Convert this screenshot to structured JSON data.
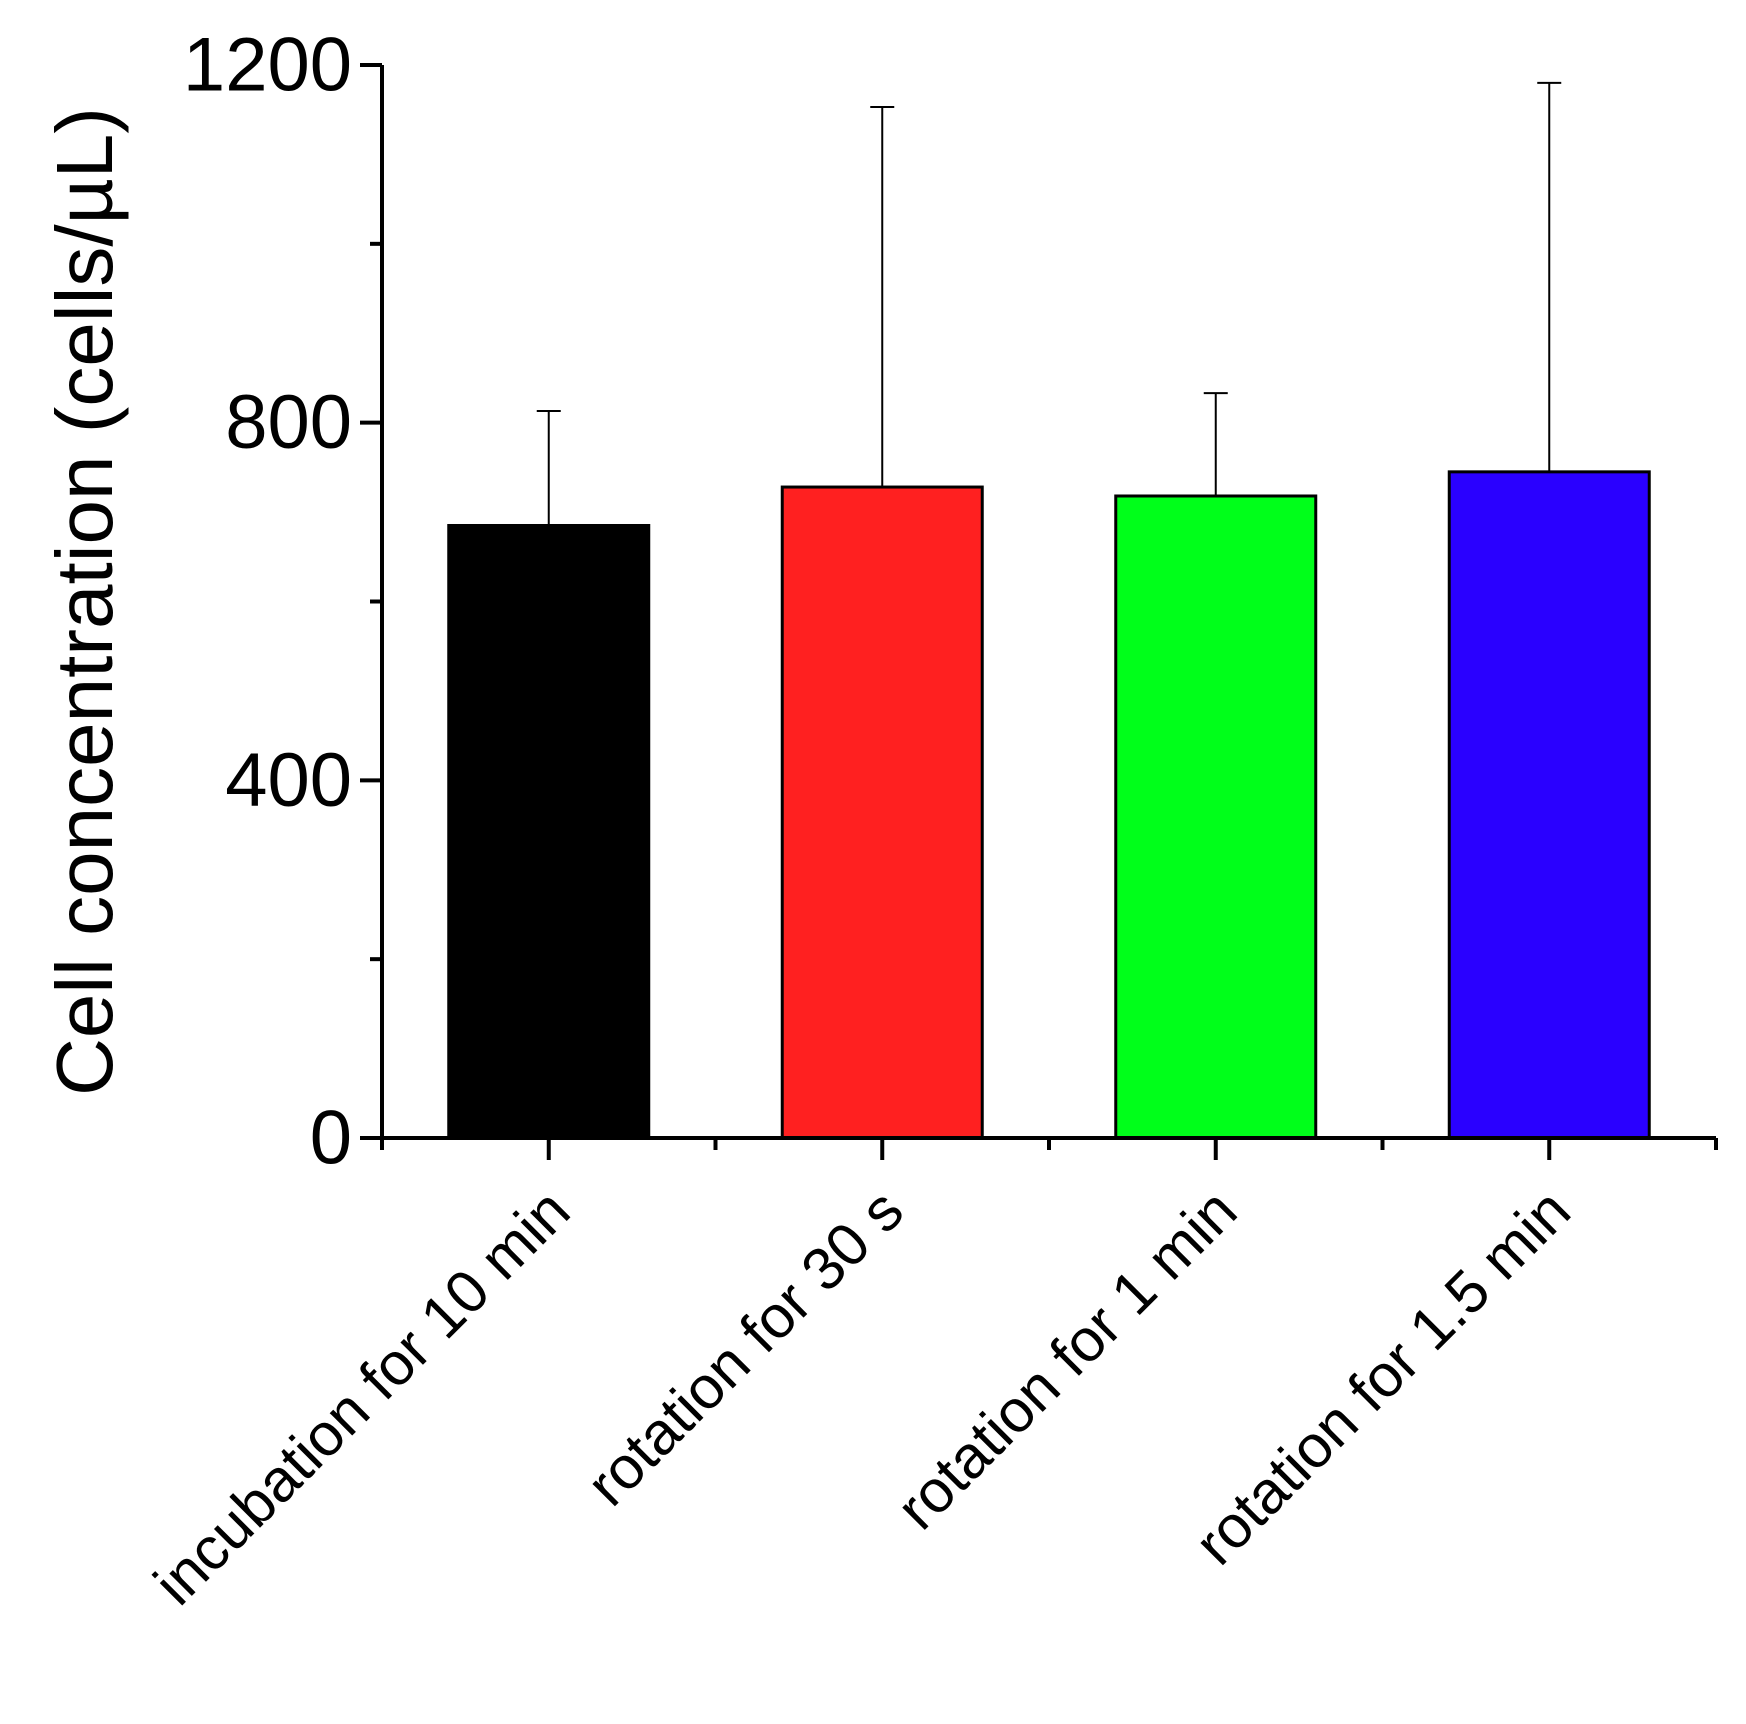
{
  "chart_data": {
    "type": "bar",
    "title": "",
    "xlabel": "",
    "ylabel": "Cell concentration (cells/µL)",
    "categories": [
      "incubation for 10 min",
      "rotation for 30 s",
      "rotation for 1 min",
      "rotation for 1.5 min"
    ],
    "values": [
      685,
      728,
      718,
      745
    ],
    "error_plus": [
      128,
      425,
      115,
      435
    ],
    "colors": [
      "#000000",
      "#ff2020",
      "#00ff1a",
      "#2a00ff"
    ],
    "ylim": [
      0,
      1200
    ],
    "yticks_major": [
      0,
      400,
      800,
      1200
    ],
    "ytick_labels": [
      "0",
      "400",
      "800",
      "1200"
    ],
    "yticks_minor": [
      200,
      600,
      1000
    ],
    "grid": false,
    "legend": "none"
  }
}
